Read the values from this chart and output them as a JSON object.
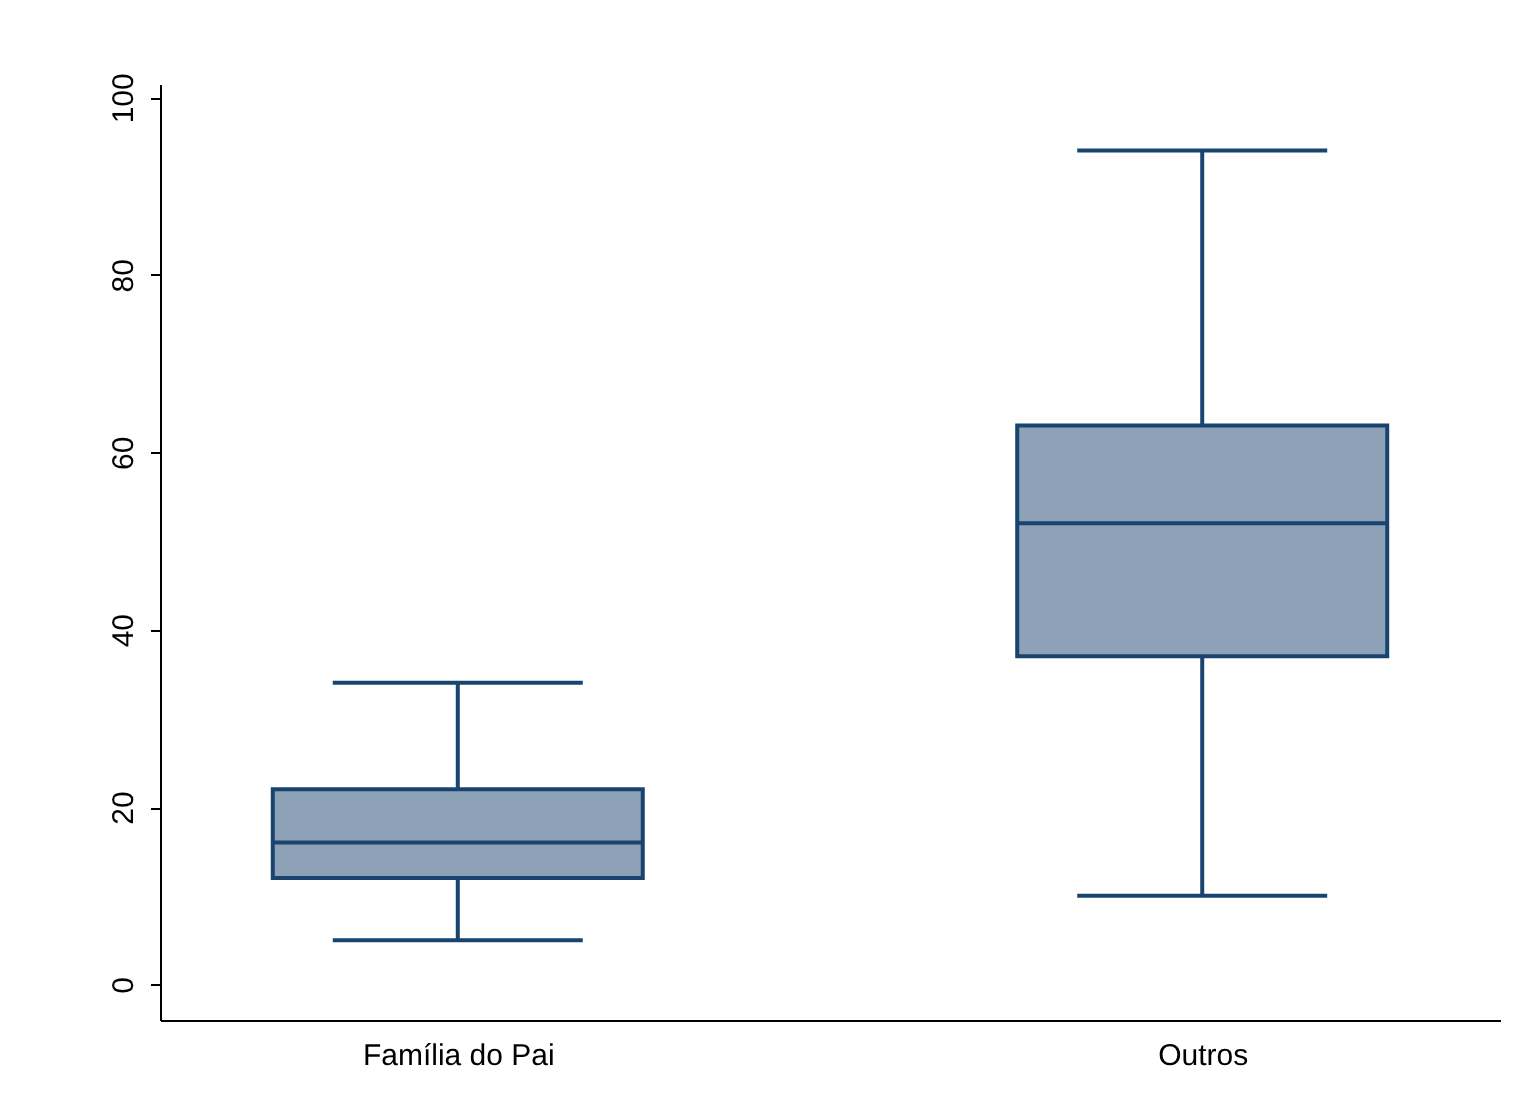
{
  "chart_data": {
    "type": "box",
    "categories": [
      "Família do Pai",
      "Outros"
    ],
    "series": [
      {
        "color": "#8da2b7",
        "boxes": [
          {
            "low": 5,
            "q1": 12,
            "median": 16,
            "q3": 22,
            "high": 34
          },
          {
            "low": 10,
            "q1": 37,
            "median": 52,
            "q3": 63,
            "high": 94
          }
        ]
      }
    ],
    "ylim": [
      -4,
      101.5
    ],
    "yticks": [
      0,
      20,
      40,
      60,
      80,
      100
    ]
  }
}
